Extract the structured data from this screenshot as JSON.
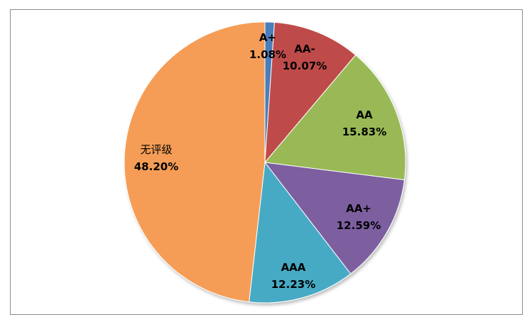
{
  "chart_data": {
    "type": "pie",
    "start_angle_deg": 0,
    "direction": "clockwise",
    "slices": [
      {
        "label": "A+",
        "value": 1.08,
        "display": "1.08%",
        "color": "#4a7ebb"
      },
      {
        "label": "AA-",
        "value": 10.07,
        "display": "10.07%",
        "color": "#be4b48"
      },
      {
        "label": "AA",
        "value": 15.83,
        "display": "15.83%",
        "color": "#98b954"
      },
      {
        "label": "AA+",
        "value": 12.59,
        "display": "12.59%",
        "color": "#7d5fa0"
      },
      {
        "label": "AAA",
        "value": 12.23,
        "display": "12.23%",
        "color": "#46aac5"
      },
      {
        "label": "无评级",
        "value": 48.2,
        "display": "48.20%",
        "color": "#f59d56"
      }
    ],
    "legend": "none",
    "title": ""
  }
}
